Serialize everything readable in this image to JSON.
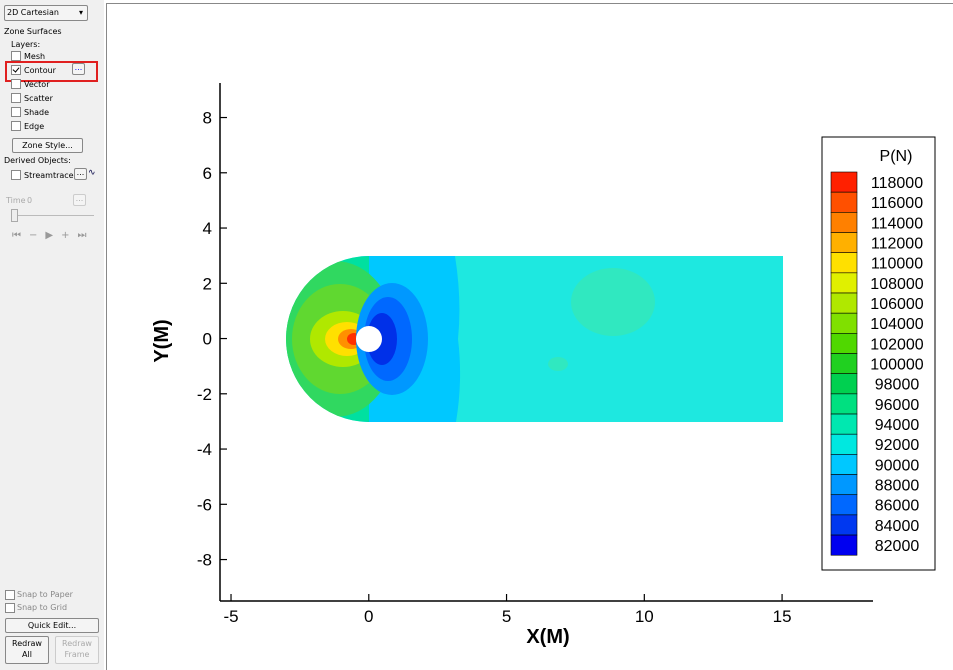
{
  "toolbar": {
    "frame_mode": "2D Cartesian",
    "zone_surfaces": "Zone Surfaces",
    "layers_label": "Layers:",
    "layers": [
      {
        "label": "Mesh",
        "checked": false
      },
      {
        "label": "Contour",
        "checked": true
      },
      {
        "label": "Vector",
        "checked": false
      },
      {
        "label": "Scatter",
        "checked": false
      },
      {
        "label": "Shade",
        "checked": false
      },
      {
        "label": "Edge",
        "checked": false
      }
    ],
    "more_button": "...",
    "zone_style": "Zone Style...",
    "derived_label": "Derived Objects:",
    "streamtraces": {
      "label": "Streamtraces",
      "checked": false
    },
    "time_label": "Time",
    "time_value": 0,
    "snap_to_paper": "Snap to Paper",
    "snap_to_grid": "Snap to Grid",
    "quick_edit": "Quick Edit...",
    "redraw_all": "Redraw All",
    "redraw_frame": "Redraw Frame"
  },
  "chart_data": {
    "type": "contour",
    "xlabel": "X(M)",
    "ylabel": "Y(M)",
    "xlim": [
      -5.4,
      18.3
    ],
    "ylim": [
      -9.5,
      9.25
    ],
    "xticks": [
      -5,
      0,
      5,
      10,
      15
    ],
    "yticks": [
      -8,
      -6,
      -4,
      -2,
      0,
      2,
      4,
      6,
      8
    ],
    "legend": {
      "title": "P(N)",
      "levels": [
        118000,
        116000,
        114000,
        112000,
        110000,
        108000,
        106000,
        104000,
        102000,
        100000,
        98000,
        96000,
        94000,
        92000,
        90000,
        88000,
        86000,
        84000,
        82000
      ],
      "colors": [
        "#ff2000",
        "#ff5000",
        "#ff8000",
        "#ffb000",
        "#ffe000",
        "#e0f000",
        "#b0e800",
        "#80e000",
        "#50d800",
        "#20d020",
        "#00d050",
        "#00e080",
        "#00e8b0",
        "#00e8e0",
        "#00c8ff",
        "#0098ff",
        "#0068ff",
        "#0038f0",
        "#0000f0"
      ]
    }
  }
}
